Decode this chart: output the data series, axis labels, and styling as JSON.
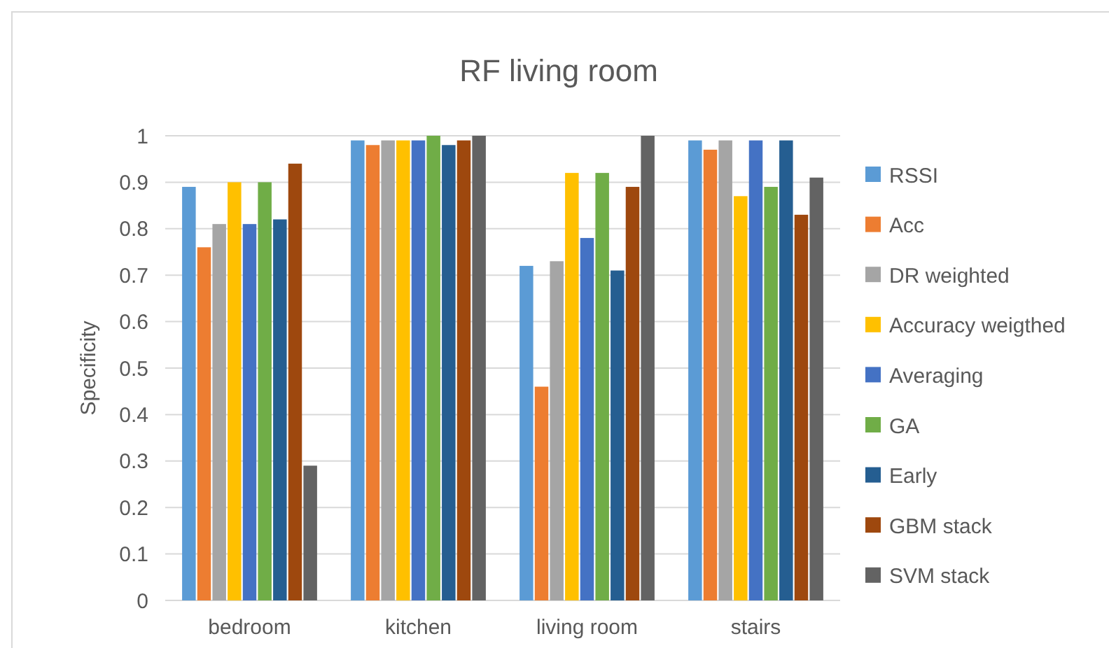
{
  "chart_data": {
    "type": "bar",
    "title": "RF living room",
    "ylabel": "Specificity",
    "categories": [
      "bedroom",
      "kitchen",
      "living room",
      "stairs"
    ],
    "series": [
      {
        "name": "RSSI",
        "color": "#5b9bd5",
        "values": [
          0.89,
          0.99,
          0.72,
          0.99
        ]
      },
      {
        "name": "Acc",
        "color": "#ed7d31",
        "values": [
          0.76,
          0.98,
          0.46,
          0.97
        ]
      },
      {
        "name": "DR weighted",
        "color": "#a5a5a5",
        "values": [
          0.81,
          0.99,
          0.73,
          0.99
        ]
      },
      {
        "name": "Accuracy weigthed",
        "color": "#ffc000",
        "values": [
          0.9,
          0.99,
          0.92,
          0.87
        ]
      },
      {
        "name": "Averaging",
        "color": "#4472c4",
        "values": [
          0.81,
          0.99,
          0.78,
          0.99
        ]
      },
      {
        "name": "GA",
        "color": "#70ad47",
        "values": [
          0.9,
          1.0,
          0.92,
          0.89
        ]
      },
      {
        "name": "Early",
        "color": "#255e91",
        "values": [
          0.82,
          0.98,
          0.71,
          0.99
        ]
      },
      {
        "name": "GBM stack",
        "color": "#9e480e",
        "values": [
          0.94,
          0.99,
          0.89,
          0.83
        ]
      },
      {
        "name": "SVM stack",
        "color": "#636363",
        "values": [
          0.29,
          1.0,
          1.0,
          0.91
        ]
      }
    ],
    "ylim": [
      0,
      1
    ],
    "yticks": [
      0,
      0.1,
      0.2,
      0.3,
      0.4,
      0.5,
      0.6,
      0.7,
      0.8,
      0.9,
      1
    ],
    "grid": "y",
    "legend": "right"
  }
}
